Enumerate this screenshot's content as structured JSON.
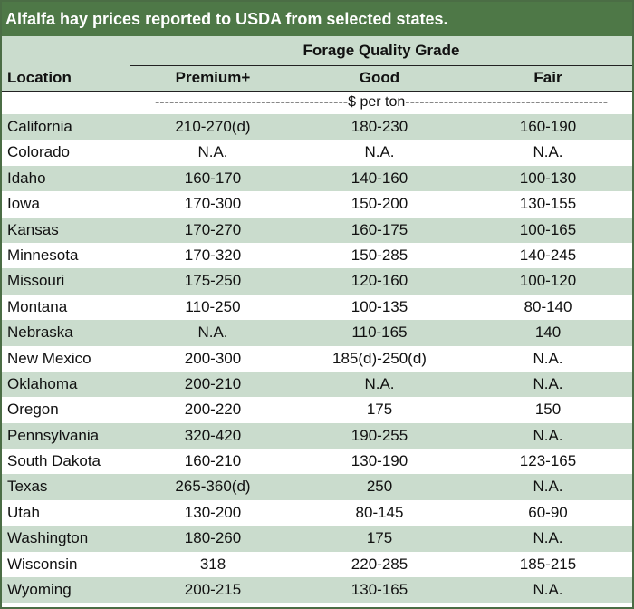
{
  "title": "Alfalfa hay prices reported to USDA from selected states.",
  "header": {
    "group": "Forage Quality Grade",
    "location": "Location",
    "premium": "Premium+",
    "good": "Good",
    "fair": "Fair"
  },
  "units": "----------------------------------------$ per ton------------------------------------------",
  "colors": {
    "title_bg": "#4e7847",
    "band": "#cadccd"
  },
  "rows": [
    {
      "location": "California",
      "premium": "210-270(d)",
      "good": "180-230",
      "fair": "160-190"
    },
    {
      "location": "Colorado",
      "premium": "N.A.",
      "good": "N.A.",
      "fair": "N.A."
    },
    {
      "location": "Idaho",
      "premium": "160-170",
      "good": "140-160",
      "fair": "100-130"
    },
    {
      "location": "Iowa",
      "premium": "170-300",
      "good": "150-200",
      "fair": "130-155"
    },
    {
      "location": "Kansas",
      "premium": "170-270",
      "good": "160-175",
      "fair": "100-165"
    },
    {
      "location": "Minnesota",
      "premium": "170-320",
      "good": "150-285",
      "fair": "140-245"
    },
    {
      "location": "Missouri",
      "premium": "175-250",
      "good": "120-160",
      "fair": "100-120"
    },
    {
      "location": "Montana",
      "premium": "110-250",
      "good": "100-135",
      "fair": "80-140"
    },
    {
      "location": "Nebraska",
      "premium": "N.A.",
      "good": "110-165",
      "fair": "140"
    },
    {
      "location": "New Mexico",
      "premium": "200-300",
      "good": "185(d)-250(d)",
      "fair": "N.A."
    },
    {
      "location": "Oklahoma",
      "premium": "200-210",
      "good": "N.A.",
      "fair": "N.A."
    },
    {
      "location": "Oregon",
      "premium": "200-220",
      "good": "175",
      "fair": "150"
    },
    {
      "location": "Pennsylvania",
      "premium": "320-420",
      "good": "190-255",
      "fair": "N.A."
    },
    {
      "location": "South Dakota",
      "premium": "160-210",
      "good": "130-190",
      "fair": "123-165"
    },
    {
      "location": "Texas",
      "premium": "265-360(d)",
      "good": "250",
      "fair": "N.A."
    },
    {
      "location": "Utah",
      "premium": "130-200",
      "good": "80-145",
      "fair": "60-90"
    },
    {
      "location": "Washington",
      "premium": "180-260",
      "good": "175",
      "fair": "N.A."
    },
    {
      "location": "Wisconsin",
      "premium": "318",
      "good": "220-285",
      "fair": "185-215"
    },
    {
      "location": "Wyoming",
      "premium": "200-215",
      "good": "130-165",
      "fair": "N.A."
    }
  ]
}
